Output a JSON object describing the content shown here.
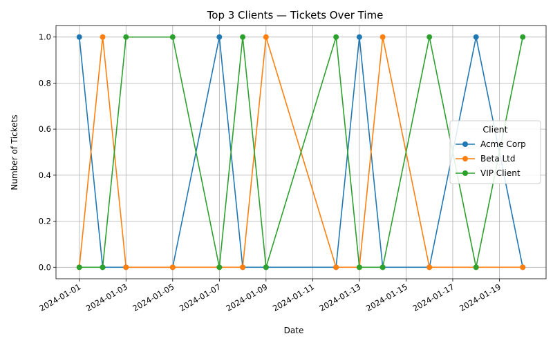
{
  "chart_data": {
    "type": "line",
    "title": "Top 3 Clients — Tickets Over Time",
    "xlabel": "Date",
    "ylabel": "Number of Tickets",
    "x": [
      "2024-01-01",
      "2024-01-02",
      "2024-01-03",
      "2024-01-05",
      "2024-01-07",
      "2024-01-08",
      "2024-01-09",
      "2024-01-12",
      "2024-01-13",
      "2024-01-14",
      "2024-01-16",
      "2024-01-18",
      "2024-01-20"
    ],
    "x_ticks": [
      "2024-01-01",
      "2024-01-03",
      "2024-01-05",
      "2024-01-07",
      "2024-01-09",
      "2024-01-11",
      "2024-01-13",
      "2024-01-15",
      "2024-01-17",
      "2024-01-19"
    ],
    "xlim": [
      "2023-12-31",
      "2024-01-21"
    ],
    "ylim": [
      -0.05,
      1.05
    ],
    "y_ticks": [
      "0.0",
      "0.2",
      "0.4",
      "0.6",
      "0.8",
      "1.0"
    ],
    "grid": true,
    "legend": {
      "title": "Client",
      "position": "right"
    },
    "series": [
      {
        "name": "Acme Corp",
        "color": "#1f77b4",
        "values": [
          1,
          0,
          0,
          0,
          1,
          0,
          0,
          0,
          1,
          0,
          0,
          1,
          0
        ]
      },
      {
        "name": "Beta Ltd",
        "color": "#ff7f0e",
        "values": [
          0,
          1,
          0,
          0,
          0,
          0,
          1,
          0,
          0,
          1,
          0,
          0,
          0
        ]
      },
      {
        "name": "VIP Client",
        "color": "#2ca02c",
        "values": [
          0,
          0,
          1,
          1,
          0,
          1,
          0,
          1,
          0,
          0,
          1,
          0,
          1
        ]
      }
    ]
  }
}
